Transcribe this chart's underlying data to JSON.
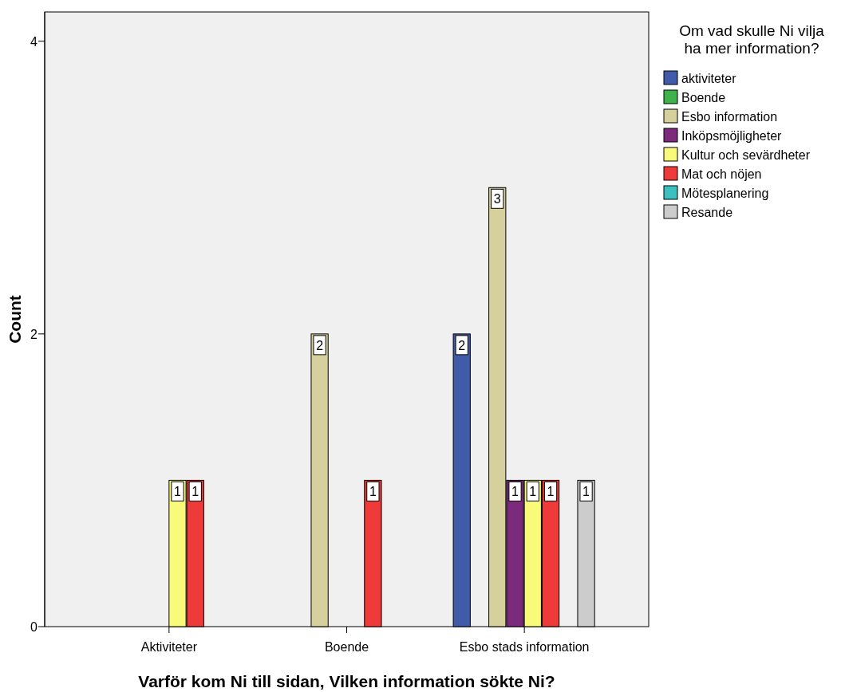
{
  "chart_data": {
    "type": "bar",
    "xlabel": "Varför kom Ni till sidan, Vilken information sökte Ni?",
    "ylabel": "Count",
    "legend_title": "Om vad skulle Ni vilja ha mer information?",
    "categories": [
      "Aktiviteter",
      "Boende",
      "Esbo stads information"
    ],
    "series": [
      {
        "name": "aktiviteter",
        "color": "#3f5baa",
        "values": [
          null,
          null,
          2
        ]
      },
      {
        "name": "Boende",
        "color": "#3db34a",
        "values": [
          null,
          null,
          null
        ]
      },
      {
        "name": "Esbo information",
        "color": "#d5d09c",
        "values": [
          null,
          2,
          3
        ]
      },
      {
        "name": "Inköpsmöjligheter",
        "color": "#7b2a7c",
        "values": [
          null,
          null,
          1
        ]
      },
      {
        "name": "Kultur och sevärdheter",
        "color": "#fafa7a",
        "values": [
          1,
          null,
          1
        ]
      },
      {
        "name": "Mat och nöjen",
        "color": "#ef3a3a",
        "values": [
          1,
          1,
          1
        ]
      },
      {
        "name": "Mötesplanering",
        "color": "#3bbfbf",
        "values": [
          null,
          null,
          null
        ]
      },
      {
        "name": "Resande",
        "color": "#cccccc",
        "values": [
          null,
          null,
          1
        ]
      }
    ],
    "ylim": [
      0,
      4.2
    ],
    "yticks": [
      0,
      2,
      4
    ],
    "grid": false,
    "legend": "right",
    "data_labels": true
  }
}
